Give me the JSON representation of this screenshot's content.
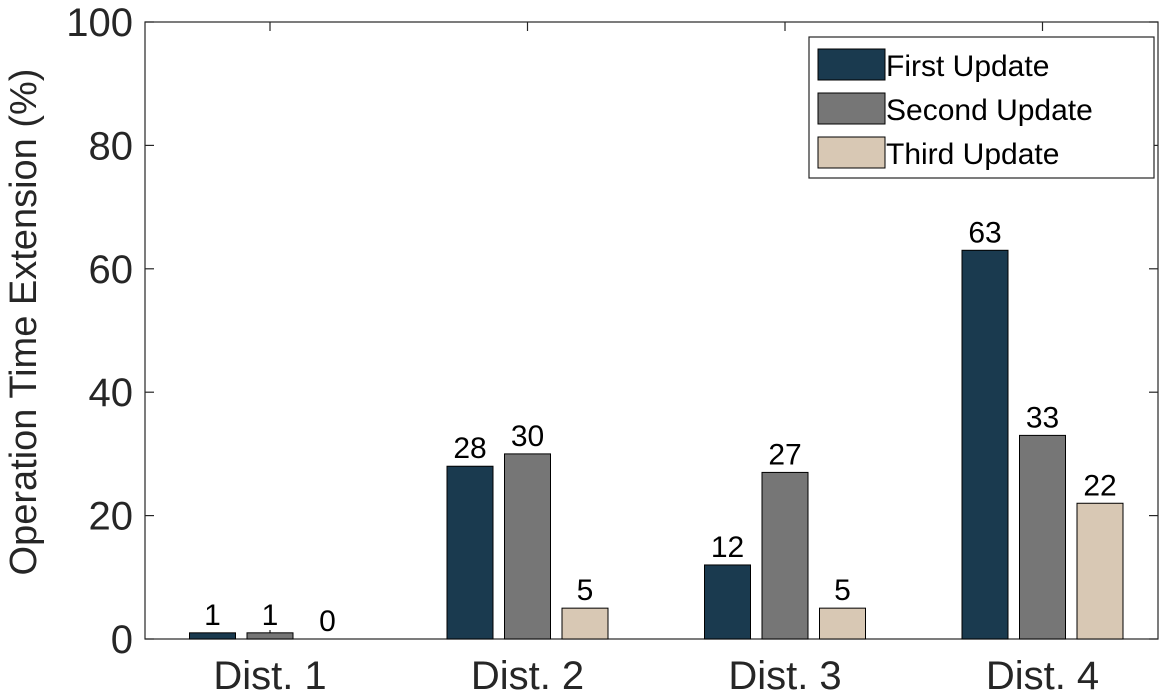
{
  "chart_data": {
    "type": "bar",
    "categories": [
      "Dist. 1",
      "Dist. 2",
      "Dist. 3",
      "Dist. 4"
    ],
    "series": [
      {
        "name": "First Update",
        "color": "#1a3a4f",
        "values": [
          1,
          28,
          12,
          63
        ],
        "labels": [
          "1",
          "28",
          "12",
          "63"
        ]
      },
      {
        "name": "Second Update",
        "color": "#767676",
        "values": [
          1,
          30,
          27,
          33
        ],
        "labels": [
          "1",
          "30",
          "27",
          "33"
        ]
      },
      {
        "name": "Third Update",
        "color": "#d8c8b4",
        "values": [
          0,
          5,
          5,
          22
        ],
        "labels": [
          "0",
          "5",
          "5",
          "22"
        ]
      }
    ],
    "ylabel": "Operation Time Extension (%)",
    "xlabel": "",
    "ylim": [
      0,
      100
    ],
    "yticks": [
      0,
      20,
      40,
      60,
      80,
      100
    ],
    "grid": false,
    "legend_position": "top-right"
  }
}
